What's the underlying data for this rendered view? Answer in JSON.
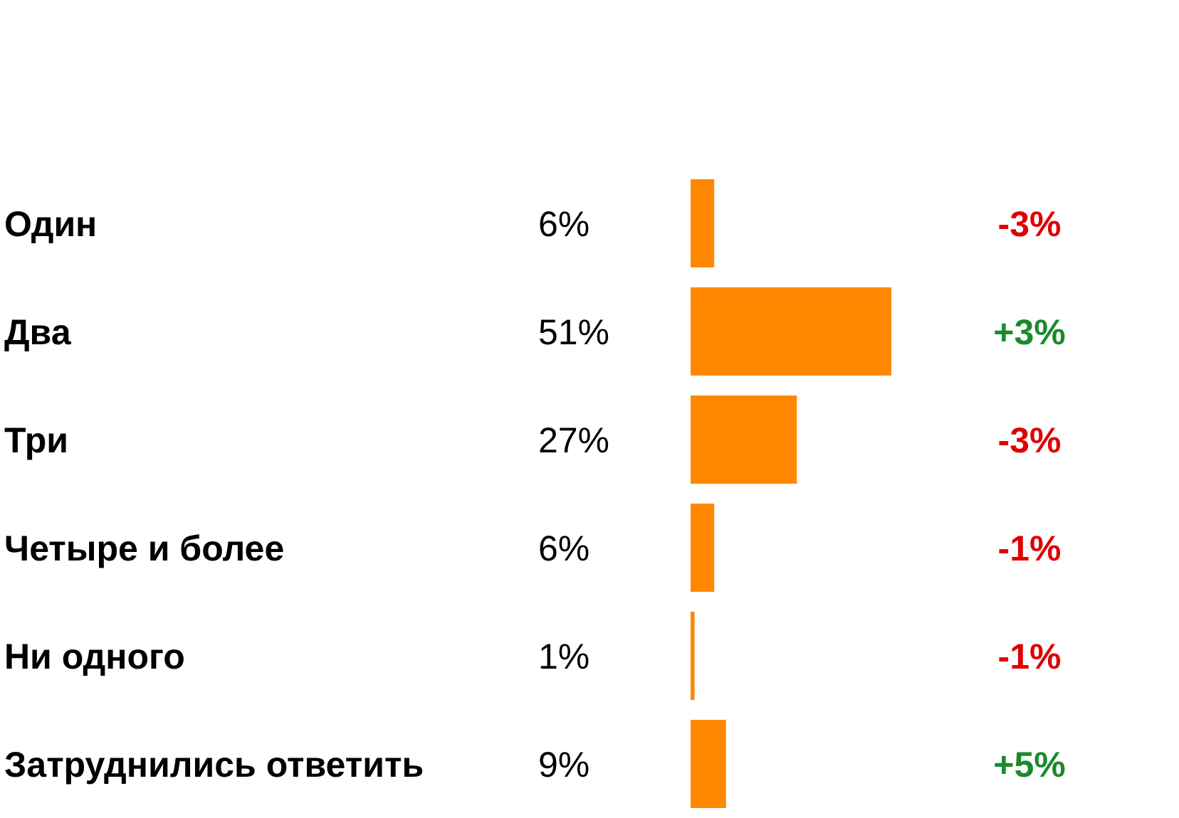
{
  "chart_data": {
    "type": "bar",
    "orientation": "horizontal",
    "categories": [
      "Один",
      "Два",
      "Три",
      "Четыре и более",
      "Ни одного",
      "Затруднились ответить"
    ],
    "values": [
      6,
      51,
      27,
      6,
      1,
      9
    ],
    "color": "#ff8800",
    "value_labels": [
      "6%",
      "51%",
      "27%",
      "6%",
      "1%",
      "9%"
    ],
    "annotations": [
      "-3%",
      "+3%",
      "-3%",
      "-1%",
      "-1%",
      "+5%"
    ]
  }
}
